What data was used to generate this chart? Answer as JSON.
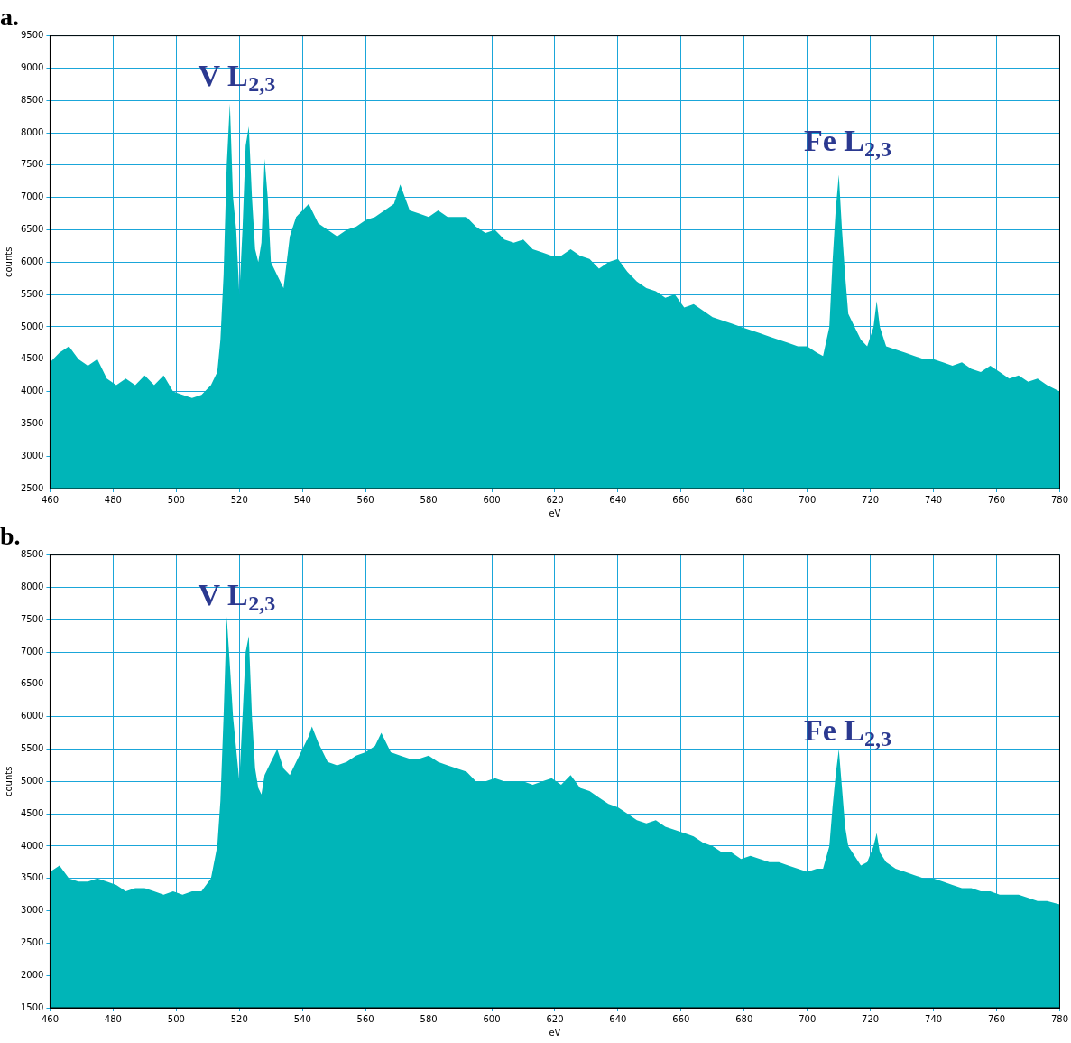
{
  "chart_data": [
    {
      "type": "area",
      "title": "a.",
      "xlabel": "eV",
      "ylabel": "counts",
      "xlim": [
        460,
        780
      ],
      "xticks": [
        460,
        480,
        500,
        520,
        540,
        560,
        580,
        600,
        620,
        640,
        660,
        680,
        700,
        720,
        740,
        760,
        780
      ],
      "ylim": [
        2500,
        9500
      ],
      "yticks": [
        2500,
        3000,
        3500,
        4000,
        4500,
        5000,
        5500,
        6000,
        6500,
        7000,
        7500,
        8000,
        8500,
        9000,
        9500
      ],
      "grid": true,
      "legend": false,
      "annotations": [
        "V L$_{2,3}$",
        "Fe L$_{2,3}$"
      ],
      "series": [
        {
          "color": "#00b5b8",
          "x": [
            460,
            463,
            466,
            469,
            472,
            475,
            478,
            481,
            484,
            487,
            490,
            493,
            496,
            499,
            502,
            505,
            508,
            511,
            513,
            514,
            515,
            516,
            517,
            518,
            519,
            520,
            521,
            522,
            523,
            524,
            525,
            526,
            527,
            528,
            529,
            530,
            532,
            534,
            536,
            538,
            540,
            542,
            545,
            548,
            551,
            554,
            557,
            560,
            563,
            566,
            569,
            571,
            574,
            577,
            580,
            583,
            586,
            589,
            592,
            595,
            598,
            601,
            604,
            607,
            610,
            613,
            616,
            619,
            622,
            625,
            628,
            631,
            634,
            637,
            640,
            643,
            646,
            649,
            652,
            655,
            658,
            661,
            664,
            667,
            670,
            673,
            676,
            679,
            682,
            685,
            688,
            691,
            694,
            697,
            700,
            703,
            705,
            707,
            708,
            709,
            710,
            711,
            712,
            713,
            715,
            717,
            719,
            721,
            722,
            723,
            725,
            728,
            731,
            734,
            737,
            740,
            743,
            746,
            749,
            752,
            755,
            758,
            761,
            764,
            767,
            770,
            773,
            776,
            780
          ],
          "values": [
            4450,
            4600,
            4700,
            4500,
            4400,
            4500,
            4200,
            4100,
            4200,
            4100,
            4250,
            4100,
            4250,
            4000,
            3950,
            3900,
            3950,
            4100,
            4300,
            4800,
            5800,
            7500,
            8450,
            7000,
            6500,
            5500,
            6500,
            7800,
            8100,
            7000,
            6200,
            6000,
            6300,
            7600,
            7000,
            6000,
            5800,
            5600,
            6400,
            6700,
            6800,
            6900,
            6600,
            6500,
            6400,
            6500,
            6550,
            6650,
            6700,
            6800,
            6900,
            7200,
            6800,
            6750,
            6700,
            6800,
            6700,
            6700,
            6700,
            6550,
            6450,
            6500,
            6350,
            6300,
            6350,
            6200,
            6150,
            6100,
            6100,
            6200,
            6100,
            6050,
            5900,
            6000,
            6050,
            5850,
            5700,
            5600,
            5550,
            5450,
            5500,
            5300,
            5350,
            5250,
            5150,
            5100,
            5050,
            5000,
            4950,
            4900,
            4850,
            4800,
            4750,
            4700,
            4700,
            4600,
            4550,
            5000,
            6000,
            6800,
            7350,
            6500,
            5800,
            5200,
            5000,
            4800,
            4700,
            5000,
            5400,
            5000,
            4700,
            4650,
            4600,
            4550,
            4500,
            4500,
            4450,
            4400,
            4450,
            4350,
            4300,
            4400,
            4300,
            4200,
            4250,
            4150,
            4200,
            4100,
            4000
          ]
        }
      ]
    },
    {
      "type": "area",
      "title": "b.",
      "xlabel": "eV",
      "ylabel": "counts",
      "xlim": [
        460,
        780
      ],
      "xticks": [
        460,
        480,
        500,
        520,
        540,
        560,
        580,
        600,
        620,
        640,
        660,
        680,
        700,
        720,
        740,
        760,
        780
      ],
      "ylim": [
        1500,
        8500
      ],
      "yticks": [
        1500,
        2000,
        2500,
        3000,
        3500,
        4000,
        4500,
        5000,
        5500,
        6000,
        6500,
        7000,
        7500,
        8000,
        8500
      ],
      "grid": true,
      "legend": false,
      "annotations": [
        "V L$_{2,3}$",
        "Fe L$_{2,3}$"
      ],
      "series": [
        {
          "color": "#00b5b8",
          "x": [
            460,
            463,
            466,
            469,
            472,
            475,
            478,
            481,
            484,
            487,
            490,
            493,
            496,
            499,
            502,
            505,
            508,
            511,
            513,
            514,
            515,
            516,
            517,
            518,
            519,
            520,
            521,
            522,
            523,
            524,
            525,
            526,
            527,
            528,
            530,
            532,
            534,
            536,
            538,
            540,
            542,
            543,
            545,
            548,
            551,
            554,
            557,
            560,
            563,
            565,
            568,
            571,
            574,
            577,
            580,
            583,
            586,
            589,
            592,
            595,
            598,
            601,
            604,
            607,
            610,
            613,
            616,
            619,
            622,
            625,
            628,
            631,
            634,
            637,
            640,
            643,
            646,
            649,
            652,
            655,
            658,
            661,
            664,
            667,
            670,
            673,
            676,
            679,
            682,
            685,
            688,
            691,
            694,
            697,
            700,
            703,
            705,
            707,
            708,
            709,
            710,
            711,
            712,
            713,
            715,
            717,
            719,
            721,
            722,
            723,
            725,
            728,
            731,
            734,
            737,
            740,
            743,
            746,
            749,
            752,
            755,
            758,
            761,
            764,
            767,
            770,
            773,
            776,
            780
          ],
          "values": [
            3600,
            3700,
            3500,
            3450,
            3450,
            3500,
            3450,
            3400,
            3300,
            3350,
            3350,
            3300,
            3250,
            3300,
            3250,
            3300,
            3300,
            3500,
            4000,
            4700,
            6000,
            7550,
            6800,
            6000,
            5500,
            5000,
            6000,
            7000,
            7250,
            6000,
            5200,
            4900,
            4800,
            5100,
            5300,
            5500,
            5200,
            5100,
            5300,
            5500,
            5700,
            5850,
            5600,
            5300,
            5250,
            5300,
            5400,
            5450,
            5550,
            5750,
            5450,
            5400,
            5350,
            5350,
            5400,
            5300,
            5250,
            5200,
            5150,
            5000,
            5000,
            5050,
            5000,
            5000,
            5000,
            4950,
            5000,
            5050,
            4950,
            5100,
            4900,
            4850,
            4750,
            4650,
            4600,
            4500,
            4400,
            4350,
            4400,
            4300,
            4250,
            4200,
            4150,
            4050,
            4000,
            3900,
            3900,
            3800,
            3850,
            3800,
            3750,
            3750,
            3700,
            3650,
            3600,
            3650,
            3650,
            4000,
            4600,
            5100,
            5500,
            4900,
            4300,
            4000,
            3850,
            3700,
            3750,
            4000,
            4200,
            3900,
            3750,
            3650,
            3600,
            3550,
            3500,
            3500,
            3450,
            3400,
            3350,
            3350,
            3300,
            3300,
            3250,
            3250,
            3250,
            3200,
            3150,
            3150,
            3100
          ]
        }
      ]
    }
  ]
}
